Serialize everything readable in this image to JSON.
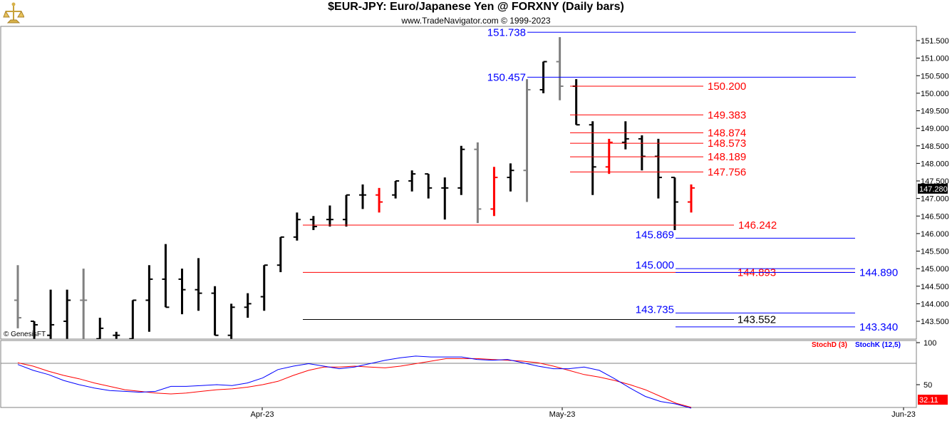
{
  "header": {
    "title": "$EUR-JPY:  Euro/Japanese Yen @ FORXNY  (Daily bars)",
    "copyright": "www.TradeNavigator.com © 1999-2023",
    "watermark": "© GenesisFT"
  },
  "chart_data": [
    {
      "type": "ohlc",
      "title": "$EUR-JPY:  Euro/Japanese Yen @ FORXNY  (Daily bars)",
      "ylim": [
        143.0,
        151.9
      ],
      "yticks": [
        "151.500",
        "151.000",
        "150.500",
        "150.000",
        "149.500",
        "149.000",
        "148.500",
        "148.000",
        "147.500",
        "147.000",
        "146.500",
        "146.000",
        "145.500",
        "145.000",
        "144.500",
        "144.000",
        "143.500"
      ],
      "last_price": "147.280",
      "x_labels": [
        "Apr-23",
        "May-23",
        "Jun-23"
      ],
      "bars": [
        {
          "o": 144.1,
          "h": 145.1,
          "l": 143.3,
          "c": 143.6,
          "color": "gray"
        },
        {
          "o": 143.5,
          "h": 143.5,
          "l": 143.0,
          "c": 143.4,
          "color": "black"
        },
        {
          "o": 143.1,
          "h": 144.4,
          "l": 143.0,
          "c": 143.4,
          "color": "black"
        },
        {
          "o": 143.5,
          "h": 144.4,
          "l": 143.0,
          "c": 144.1,
          "color": "black"
        },
        {
          "o": 144.1,
          "h": 145.0,
          "l": 143.0,
          "c": 144.1,
          "color": "gray"
        },
        {
          "o": 143.0,
          "h": 143.6,
          "l": 143.0,
          "c": 143.3,
          "color": "black"
        },
        {
          "o": 143.1,
          "h": 143.2,
          "l": 143.0,
          "c": 143.1,
          "color": "black"
        },
        {
          "o": 143.0,
          "h": 144.1,
          "l": 143.0,
          "c": 144.1,
          "color": "black"
        },
        {
          "o": 144.1,
          "h": 145.1,
          "l": 143.2,
          "c": 144.7,
          "color": "black"
        },
        {
          "o": 144.7,
          "h": 145.7,
          "l": 143.9,
          "c": 143.9,
          "color": "black"
        },
        {
          "o": 144.7,
          "h": 145.0,
          "l": 143.7,
          "c": 144.4,
          "color": "black"
        },
        {
          "o": 144.4,
          "h": 145.3,
          "l": 143.8,
          "c": 144.3,
          "color": "black"
        },
        {
          "o": 144.3,
          "h": 144.5,
          "l": 143.1,
          "c": 143.1,
          "color": "black"
        },
        {
          "o": 143.1,
          "h": 144.0,
          "l": 143.0,
          "c": 143.9,
          "color": "black"
        },
        {
          "o": 143.9,
          "h": 144.3,
          "l": 143.6,
          "c": 144.0,
          "color": "black"
        },
        {
          "o": 144.2,
          "h": 145.1,
          "l": 143.8,
          "c": 145.1,
          "color": "black"
        },
        {
          "o": 145.1,
          "h": 145.9,
          "l": 144.9,
          "c": 145.9,
          "color": "black"
        },
        {
          "o": 145.9,
          "h": 146.6,
          "l": 145.8,
          "c": 146.4,
          "color": "black"
        },
        {
          "o": 146.4,
          "h": 146.5,
          "l": 146.1,
          "c": 146.2,
          "color": "black"
        },
        {
          "o": 146.4,
          "h": 146.8,
          "l": 146.2,
          "c": 146.4,
          "color": "black"
        },
        {
          "o": 146.4,
          "h": 147.1,
          "l": 146.2,
          "c": 147.1,
          "color": "black"
        },
        {
          "o": 147.1,
          "h": 147.4,
          "l": 146.7,
          "c": 147.1,
          "color": "black"
        },
        {
          "o": 147.1,
          "h": 147.3,
          "l": 146.6,
          "c": 146.9,
          "color": "red"
        },
        {
          "o": 147.1,
          "h": 147.5,
          "l": 147.0,
          "c": 147.5,
          "color": "black"
        },
        {
          "o": 147.5,
          "h": 147.8,
          "l": 147.2,
          "c": 147.7,
          "color": "black"
        },
        {
          "o": 147.7,
          "h": 147.7,
          "l": 147.0,
          "c": 147.3,
          "color": "black"
        },
        {
          "o": 147.3,
          "h": 147.6,
          "l": 146.4,
          "c": 147.3,
          "color": "black"
        },
        {
          "o": 147.3,
          "h": 148.5,
          "l": 147.1,
          "c": 148.4,
          "color": "black"
        },
        {
          "o": 148.4,
          "h": 148.6,
          "l": 146.3,
          "c": 146.7,
          "color": "gray"
        },
        {
          "o": 146.7,
          "h": 147.9,
          "l": 146.5,
          "c": 147.6,
          "color": "red"
        },
        {
          "o": 147.6,
          "h": 148.0,
          "l": 147.2,
          "c": 147.8,
          "color": "black"
        },
        {
          "o": 147.8,
          "h": 150.4,
          "l": 146.9,
          "c": 150.1,
          "color": "gray"
        },
        {
          "o": 150.1,
          "h": 150.9,
          "l": 150.0,
          "c": 150.9,
          "color": "black"
        },
        {
          "o": 150.9,
          "h": 151.6,
          "l": 149.8,
          "c": 150.2,
          "color": "gray"
        },
        {
          "o": 150.2,
          "h": 150.4,
          "l": 149.1,
          "c": 149.1,
          "color": "black"
        },
        {
          "o": 149.1,
          "h": 149.2,
          "l": 147.1,
          "c": 147.9,
          "color": "black"
        },
        {
          "o": 147.9,
          "h": 148.7,
          "l": 147.7,
          "c": 148.6,
          "color": "red"
        },
        {
          "o": 148.6,
          "h": 149.2,
          "l": 148.4,
          "c": 148.7,
          "color": "black"
        },
        {
          "o": 148.7,
          "h": 148.8,
          "l": 147.8,
          "c": 148.2,
          "color": "black"
        },
        {
          "o": 148.2,
          "h": 148.7,
          "l": 147.0,
          "c": 147.6,
          "color": "black"
        },
        {
          "o": 147.6,
          "h": 147.6,
          "l": 146.1,
          "c": 146.9,
          "color": "black"
        },
        {
          "o": 146.9,
          "h": 147.4,
          "l": 146.6,
          "c": 147.3,
          "color": "red"
        }
      ],
      "levels": [
        {
          "value": "151.738",
          "color": "blue",
          "label_side": "left",
          "segment": "top"
        },
        {
          "value": "150.457",
          "color": "blue",
          "label_side": "left",
          "segment": "top"
        },
        {
          "value": "150.200",
          "color": "red",
          "label_side": "right",
          "segment": "mid"
        },
        {
          "value": "149.383",
          "color": "red",
          "label_side": "right",
          "segment": "mid"
        },
        {
          "value": "148.874",
          "color": "red",
          "label_side": "right",
          "segment": "mid"
        },
        {
          "value": "148.573",
          "color": "red",
          "label_side": "right",
          "segment": "mid"
        },
        {
          "value": "148.189",
          "color": "red",
          "label_side": "right",
          "segment": "mid"
        },
        {
          "value": "147.756",
          "color": "red",
          "label_side": "right",
          "segment": "mid"
        },
        {
          "value": "146.242",
          "color": "red",
          "label_side": "right",
          "segment": "low"
        },
        {
          "value": "145.869",
          "color": "blue",
          "label_side": "left",
          "segment": "short"
        },
        {
          "value": "145.000",
          "color": "blue",
          "label_side": "left",
          "segment": "short"
        },
        {
          "value": "144.893",
          "color": "red",
          "label_side": "mid",
          "segment": "low"
        },
        {
          "value": "144.890",
          "color": "blue",
          "label_side": "right",
          "segment": "short"
        },
        {
          "value": "143.735",
          "color": "blue",
          "label_side": "left",
          "segment": "short"
        },
        {
          "value": "143.552",
          "color": "black",
          "label_side": "mid",
          "segment": "low"
        },
        {
          "value": "143.340",
          "color": "blue",
          "label_side": "right",
          "segment": "short"
        }
      ]
    },
    {
      "type": "line",
      "ylim": [
        0,
        100
      ],
      "yticks": [
        "100",
        "50"
      ],
      "last_value": "32.11",
      "series": [
        {
          "name": "StochD (3)",
          "color": "#ff0000",
          "values": [
            76,
            72,
            66,
            61,
            57,
            52,
            48,
            44,
            42,
            40,
            39,
            40,
            42,
            44,
            45,
            47,
            50,
            54,
            61,
            67,
            71,
            71,
            72,
            71,
            70,
            72,
            75,
            78,
            81,
            81,
            81,
            80,
            79,
            78,
            76,
            72,
            67,
            62,
            59,
            55,
            50,
            44,
            36,
            28,
            23
          ]
        },
        {
          "name": "StochK (12,5)",
          "color": "#0000ff",
          "values": [
            74,
            67,
            62,
            55,
            50,
            46,
            43,
            42,
            41,
            42,
            48,
            48,
            49,
            50,
            49,
            52,
            58,
            68,
            72,
            75,
            72,
            69,
            71,
            75,
            79,
            82,
            84,
            83,
            83,
            83,
            80,
            79,
            80,
            76,
            72,
            69,
            69,
            71,
            67,
            57,
            46,
            36,
            30,
            27,
            22
          ]
        }
      ]
    }
  ]
}
